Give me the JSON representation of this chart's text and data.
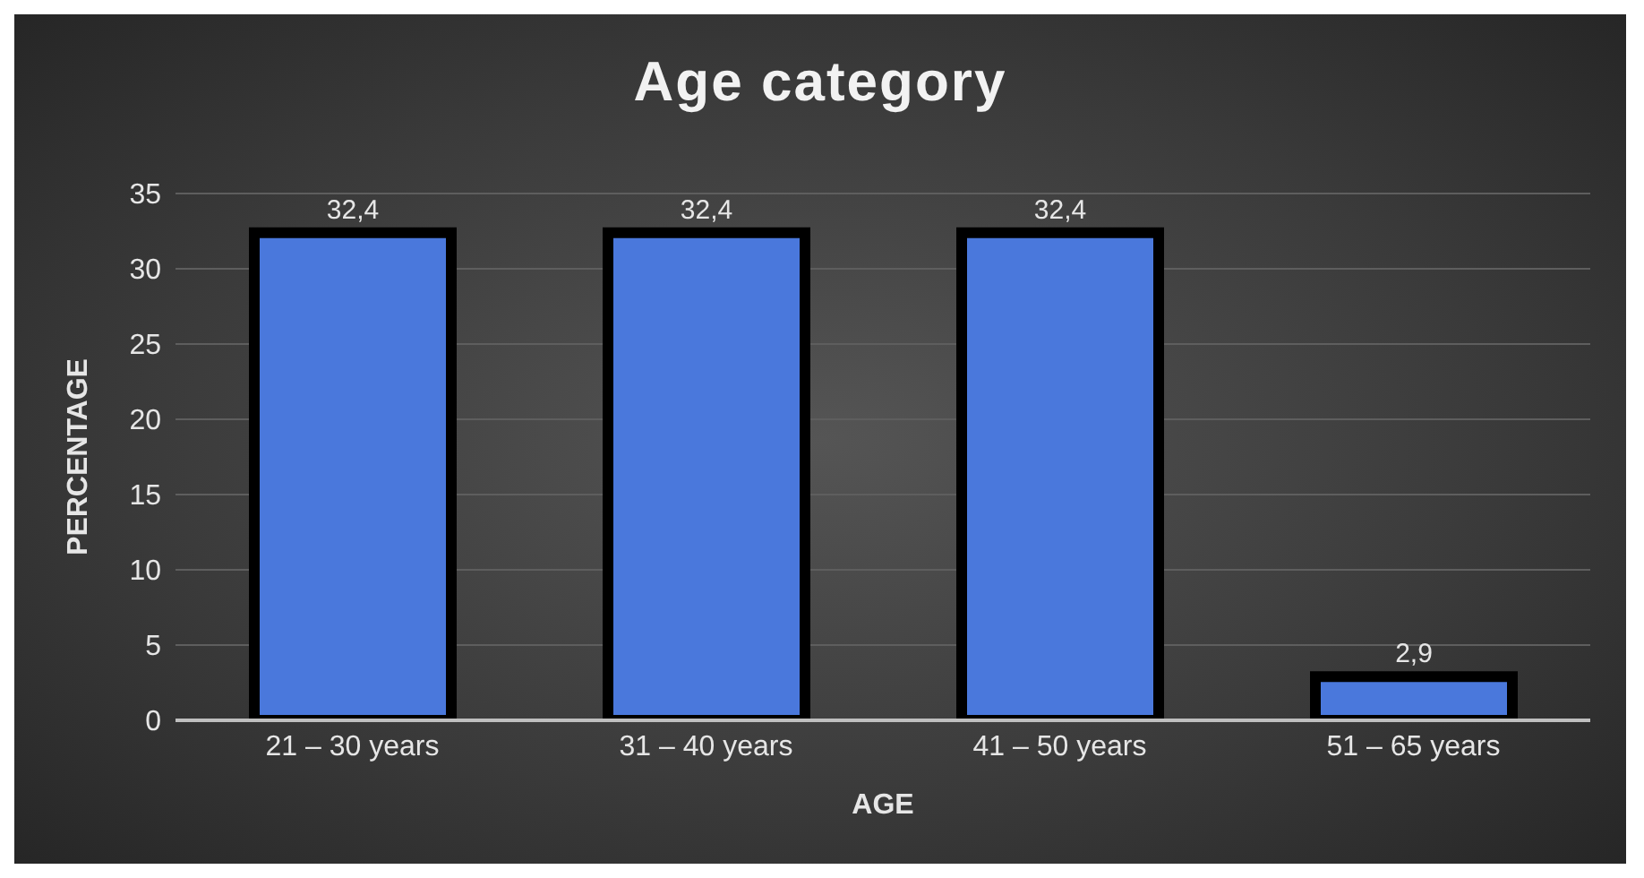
{
  "chart_data": {
    "type": "bar",
    "title": "Age category",
    "xlabel": "AGE",
    "ylabel": "PERCENTAGE",
    "categories": [
      "21 – 30 years",
      "31 – 40 years",
      "41 – 50 years",
      "51 – 65 years"
    ],
    "values": [
      32.4,
      32.4,
      32.4,
      2.9
    ],
    "value_labels": [
      "32,4",
      "32,4",
      "32,4",
      "2,9"
    ],
    "color": "#4a78dc",
    "ylim": [
      0,
      35
    ],
    "yticks": [
      0,
      5,
      10,
      15,
      20,
      25,
      30,
      35
    ],
    "grid": "y",
    "legend": false
  }
}
